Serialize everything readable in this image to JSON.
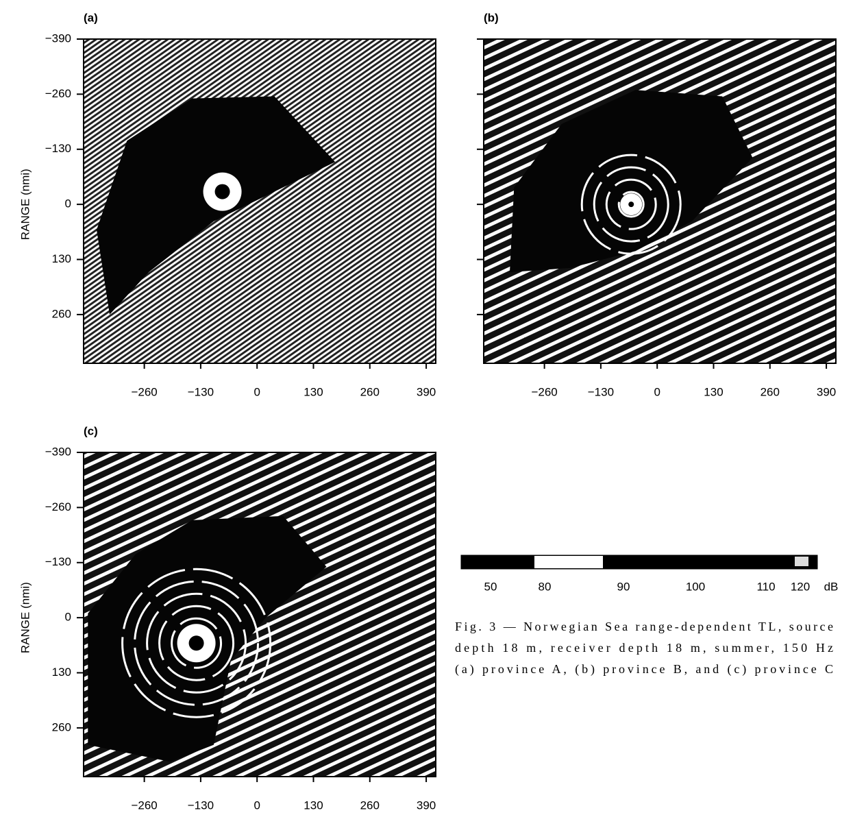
{
  "panels": [
    {
      "label": "(a)",
      "ylabel": "RANGE (nmi)",
      "xlim": [
        -400,
        412
      ],
      "ylim": [
        -390,
        375
      ],
      "xticks": [
        {
          "value": -260,
          "label": "−260"
        },
        {
          "value": -130,
          "label": "−130"
        },
        0,
        130,
        260,
        390
      ],
      "yticks": [
        {
          "value": -390,
          "label": "−390"
        },
        {
          "value": -260,
          "label": "−260"
        },
        {
          "value": -130,
          "label": "−130"
        },
        0,
        130,
        260
      ]
    },
    {
      "label": "(b)",
      "xlim": [
        -400,
        412
      ],
      "ylim": [
        -390,
        375
      ],
      "xticks": [
        {
          "value": -260,
          "label": "−260"
        },
        {
          "value": -130,
          "label": "−130"
        },
        0,
        130,
        260,
        390
      ]
    },
    {
      "label": "(c)",
      "ylabel": "RANGE (nmi)",
      "xlim": [
        -400,
        412
      ],
      "ylim": [
        -390,
        375
      ],
      "xticks": [
        {
          "value": -260,
          "label": "−260"
        },
        {
          "value": -130,
          "label": "−130"
        },
        0,
        130,
        260,
        390
      ],
      "yticks": [
        {
          "value": -390,
          "label": "−390"
        },
        {
          "value": -260,
          "label": "−260"
        },
        {
          "value": -130,
          "label": "−130"
        },
        0,
        130,
        260
      ]
    }
  ],
  "colorbar": {
    "ticks": [
      50,
      80,
      90,
      100,
      110,
      120
    ],
    "unit": "dB"
  },
  "caption": [
    "Fig. 3 — Norwegian Sea range-dependent TL, source",
    "depth 18 m, receiver depth 18 m, summer, 150 Hz",
    "(a) province A, (b) province B, and (c) province C"
  ]
}
